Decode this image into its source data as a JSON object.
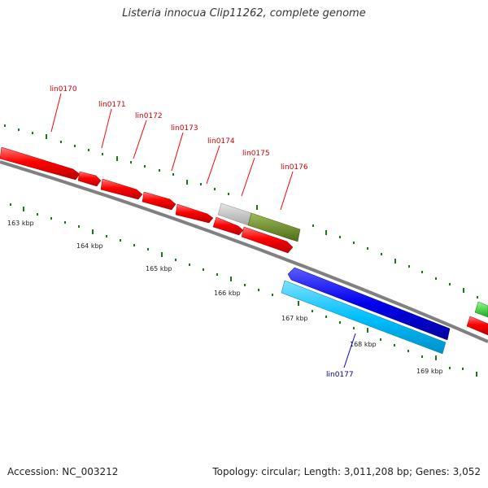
{
  "title": "Listeria innocua Clip11262, complete genome",
  "footer": {
    "accession": "Accession: NC_003212",
    "topology": "Topology: circular;",
    "length": "Length: 3,011,208 bp;",
    "genes": "Genes: 3,052"
  },
  "scale_labels": [
    "163 kbp",
    "164 kbp",
    "165 kbp",
    "166 kbp",
    "167 kbp",
    "168 kbp",
    "169 kbp"
  ],
  "gene_labels": [
    "lin0170",
    "lin0171",
    "lin0172",
    "lin0173",
    "lin0174",
    "lin0175",
    "lin0176",
    "lin0177"
  ],
  "colors": {
    "forward_gene": "#ff0000",
    "reverse_gene_dark": "#0000ee",
    "reverse_gene_light": "#00bfff",
    "grey_feature": "#c0c0c0",
    "olive_feature": "#6b8e23",
    "green_feature": "#33cc33",
    "tick": "#1a7a1a",
    "backbone": "#808080",
    "label_forward": "#cc0000",
    "label_reverse": "#000099"
  }
}
